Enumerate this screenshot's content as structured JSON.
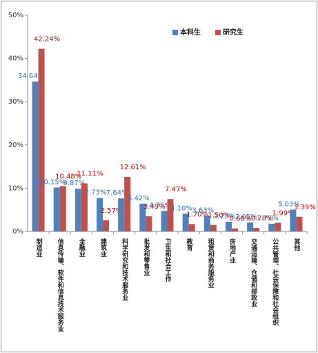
{
  "chart_data": {
    "type": "bar",
    "categories": [
      "制造业",
      "信息传输、软件和信息技术服务业",
      "金融业",
      "建筑业",
      "科学研究和技术服务业",
      "批发和零售业",
      "卫生和社会工作",
      "教育",
      "租赁和商务服务业",
      "房地产业",
      "交通运输、仓储和邮政业",
      "公共管理、社会保障和社会组织",
      "其他"
    ],
    "series": [
      {
        "name": "本科生",
        "color": "#4f81bd",
        "label_color": "#2e75b6",
        "values": [
          34.64,
          10.15,
          9.87,
          7.73,
          7.64,
          6.42,
          4.75,
          4.1,
          3.63,
          2.23,
          2.05,
          1.77,
          5.03
        ],
        "value_labels": [
          "34.64%",
          "10.15%",
          "9.87%",
          "7.73%",
          "7.64%",
          "6.42%",
          "4.75%",
          "4.10%",
          "3.63%",
          "2.23%",
          "2.05%",
          "1.77%",
          "5.03%"
        ]
      },
      {
        "name": "研究生",
        "color": "#c0504d",
        "label_color": "#c00000",
        "values": [
          42.24,
          10.48,
          11.11,
          2.57,
          12.61,
          3.49,
          7.47,
          1.7,
          1.5,
          0.68,
          0.78,
          1.99,
          3.39
        ],
        "value_labels": [
          "42.24%",
          "10.48%",
          "11.11%",
          "2.57%",
          "12.61%",
          "3.49%",
          "7.47%",
          "1.70%",
          "1.50%",
          "0.68%",
          "0.78%",
          "1.99%",
          "3.39%"
        ]
      }
    ],
    "ylim": [
      0,
      50
    ],
    "yticks": [
      {
        "value": 0,
        "label": "0%"
      },
      {
        "value": 10,
        "label": "10%"
      },
      {
        "value": 20,
        "label": "20%"
      },
      {
        "value": 30,
        "label": "30%"
      },
      {
        "value": 40,
        "label": "40%"
      },
      {
        "value": 50,
        "label": "50%"
      }
    ],
    "legend": "top-right"
  }
}
